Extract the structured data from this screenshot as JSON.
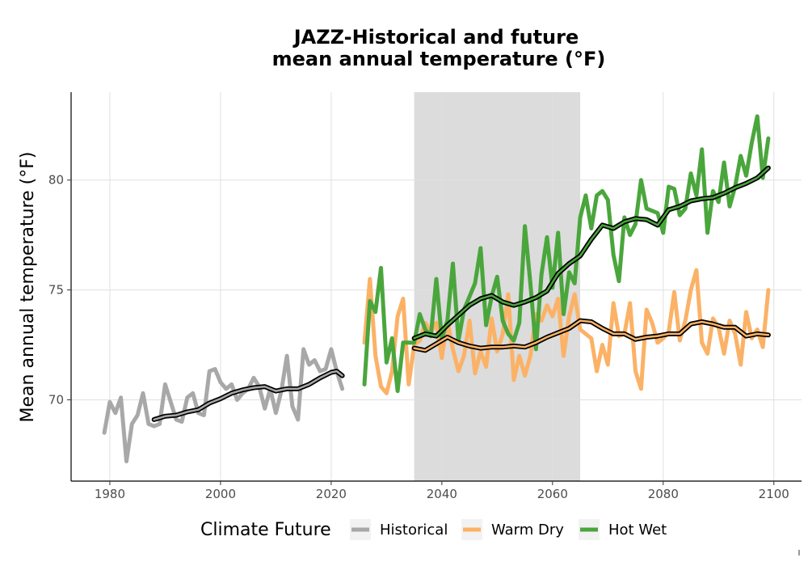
{
  "chart_data": {
    "type": "line",
    "title_lines": [
      "JAZZ-Historical and future",
      "mean annual temperature (°F)"
    ],
    "ylabel": "Mean annual temperature (°F)",
    "xlabel": "",
    "xlim": [
      1973,
      2105
    ],
    "ylim": [
      66.3,
      84.0
    ],
    "x_ticks": [
      1980,
      2000,
      2020,
      2040,
      2060,
      2080,
      2100
    ],
    "y_ticks": [
      70,
      75,
      80
    ],
    "grid": true,
    "shaded_period": [
      2035,
      2065
    ],
    "shaded_color": "#dcdcdc",
    "legend": {
      "title": "Climate Future",
      "position": "bottom",
      "items": [
        {
          "label": "Historical",
          "color": "#a8a8a8"
        },
        {
          "label": "Warm Dry",
          "color": "#fbb266"
        },
        {
          "label": "Hot Wet",
          "color": "#4aa63c"
        }
      ]
    },
    "series": [
      {
        "name": "Historical",
        "color": "#a8a8a8",
        "x": [
          1979,
          1980,
          1981,
          1982,
          1983,
          1984,
          1985,
          1986,
          1987,
          1988,
          1989,
          1990,
          1991,
          1992,
          1993,
          1994,
          1995,
          1996,
          1997,
          1998,
          1999,
          2000,
          2001,
          2002,
          2003,
          2004,
          2005,
          2006,
          2007,
          2008,
          2009,
          2010,
          2011,
          2012,
          2013,
          2014,
          2015,
          2016,
          2017,
          2018,
          2019,
          2020,
          2021,
          2022
        ],
        "y": [
          68.5,
          69.9,
          69.4,
          70.1,
          67.2,
          68.9,
          69.3,
          70.3,
          68.9,
          68.8,
          68.9,
          70.7,
          69.9,
          69.1,
          69.0,
          70.1,
          70.3,
          69.4,
          69.3,
          71.3,
          71.4,
          70.8,
          70.5,
          70.7,
          70.0,
          70.3,
          70.5,
          71.0,
          70.6,
          69.6,
          70.5,
          69.4,
          70.4,
          72.0,
          69.7,
          69.1,
          72.3,
          71.6,
          71.8,
          71.3,
          71.4,
          72.3,
          71.3,
          70.5
        ]
      },
      {
        "name": "Historical mean",
        "color": "#000000",
        "x": [
          1988,
          1990,
          1992,
          1994,
          1996,
          1998,
          2000,
          2002,
          2004,
          2006,
          2008,
          2010,
          2012,
          2014,
          2016,
          2018,
          2020,
          2021,
          2022
        ],
        "y": [
          69.1,
          69.25,
          69.3,
          69.45,
          69.55,
          69.85,
          70.05,
          70.3,
          70.45,
          70.55,
          70.6,
          70.4,
          70.5,
          70.5,
          70.7,
          71.0,
          71.25,
          71.3,
          71.1
        ]
      },
      {
        "name": "Warm Dry",
        "color": "#fbb266",
        "x": [
          2026,
          2027,
          2028,
          2029,
          2030,
          2031,
          2032,
          2033,
          2034,
          2035,
          2036,
          2037,
          2038,
          2039,
          2040,
          2041,
          2042,
          2043,
          2044,
          2045,
          2046,
          2047,
          2048,
          2049,
          2050,
          2051,
          2052,
          2053,
          2054,
          2055,
          2056,
          2057,
          2058,
          2059,
          2060,
          2061,
          2062,
          2063,
          2064,
          2065,
          2066,
          2067,
          2068,
          2069,
          2070,
          2071,
          2072,
          2073,
          2074,
          2075,
          2076,
          2077,
          2078,
          2079,
          2080,
          2081,
          2082,
          2083,
          2084,
          2085,
          2086,
          2087,
          2088,
          2089,
          2090,
          2091,
          2092,
          2093,
          2094,
          2095,
          2096,
          2097,
          2098,
          2099
        ],
        "y": [
          72.6,
          75.5,
          72.0,
          70.6,
          70.3,
          71.3,
          73.8,
          74.6,
          70.7,
          72.5,
          72.7,
          73.5,
          73.1,
          73.5,
          71.9,
          73.6,
          72.3,
          71.3,
          72.0,
          73.6,
          71.2,
          72.2,
          71.5,
          73.7,
          72.2,
          73.0,
          74.8,
          70.9,
          72.0,
          71.1,
          72.0,
          73.9,
          73.6,
          74.3,
          73.8,
          74.6,
          72.0,
          73.8,
          74.8,
          73.2,
          73.0,
          72.8,
          71.3,
          72.5,
          71.6,
          74.4,
          72.9,
          73.0,
          74.4,
          71.3,
          70.5,
          74.1,
          73.5,
          72.6,
          72.8,
          73.1,
          74.9,
          72.7,
          73.6,
          75.0,
          75.9,
          72.6,
          72.1,
          73.7,
          73.3,
          72.1,
          73.6,
          73.0,
          71.6,
          74.0,
          72.8,
          73.2,
          72.4,
          75.0
        ]
      },
      {
        "name": "Warm Dry mean",
        "color": "#000000",
        "x": [
          2035,
          2037,
          2039,
          2041,
          2043,
          2045,
          2047,
          2049,
          2051,
          2053,
          2055,
          2057,
          2059,
          2061,
          2063,
          2065,
          2067,
          2069,
          2071,
          2073,
          2075,
          2077,
          2079,
          2081,
          2083,
          2085,
          2087,
          2089,
          2091,
          2093,
          2095,
          2097,
          2099
        ],
        "y": [
          72.35,
          72.25,
          72.55,
          72.85,
          72.6,
          72.45,
          72.35,
          72.4,
          72.4,
          72.45,
          72.4,
          72.6,
          72.85,
          73.05,
          73.25,
          73.6,
          73.55,
          73.25,
          73.0,
          73.0,
          72.75,
          72.85,
          72.9,
          73.0,
          73.0,
          73.45,
          73.55,
          73.45,
          73.3,
          73.3,
          72.9,
          73.0,
          72.95
        ]
      },
      {
        "name": "Hot Wet",
        "color": "#4aa63c",
        "x": [
          2026,
          2027,
          2028,
          2029,
          2030,
          2031,
          2032,
          2033,
          2034,
          2035,
          2036,
          2037,
          2038,
          2039,
          2040,
          2041,
          2042,
          2043,
          2044,
          2045,
          2046,
          2047,
          2048,
          2049,
          2050,
          2051,
          2052,
          2053,
          2054,
          2055,
          2056,
          2057,
          2058,
          2059,
          2060,
          2061,
          2062,
          2063,
          2064,
          2065,
          2066,
          2067,
          2068,
          2069,
          2070,
          2071,
          2072,
          2073,
          2074,
          2075,
          2076,
          2077,
          2078,
          2079,
          2080,
          2081,
          2082,
          2083,
          2084,
          2085,
          2086,
          2087,
          2088,
          2089,
          2090,
          2091,
          2092,
          2093,
          2094,
          2095,
          2096,
          2097,
          2098,
          2099
        ],
        "y": [
          70.7,
          74.5,
          74.0,
          76.0,
          71.7,
          72.8,
          70.4,
          72.6,
          72.6,
          72.6,
          73.9,
          73.2,
          72.9,
          75.5,
          72.8,
          73.6,
          76.2,
          72.7,
          74.1,
          74.7,
          75.3,
          76.9,
          73.4,
          74.7,
          75.6,
          73.6,
          73.0,
          72.7,
          73.5,
          77.9,
          75.3,
          72.3,
          75.7,
          77.4,
          75.1,
          77.6,
          73.9,
          75.8,
          75.3,
          78.3,
          79.3,
          77.8,
          79.3,
          79.5,
          79.1,
          76.6,
          75.4,
          78.3,
          77.5,
          78.0,
          80.0,
          78.7,
          78.6,
          78.5,
          77.6,
          79.7,
          79.6,
          78.4,
          78.7,
          80.3,
          79.3,
          81.4,
          77.6,
          79.5,
          79.0,
          80.8,
          78.8,
          79.7,
          81.1,
          80.2,
          81.7,
          82.9,
          80.1,
          81.9
        ]
      },
      {
        "name": "Hot Wet mean",
        "color": "#000000",
        "x": [
          2035,
          2037,
          2039,
          2041,
          2043,
          2045,
          2047,
          2049,
          2051,
          2053,
          2055,
          2057,
          2059,
          2061,
          2063,
          2065,
          2067,
          2069,
          2071,
          2073,
          2075,
          2077,
          2079,
          2081,
          2083,
          2085,
          2087,
          2089,
          2091,
          2093,
          2095,
          2097,
          2099
        ],
        "y": [
          72.8,
          73.0,
          72.9,
          73.4,
          73.85,
          74.3,
          74.6,
          74.75,
          74.45,
          74.3,
          74.45,
          74.65,
          74.95,
          75.75,
          76.2,
          76.55,
          77.3,
          77.95,
          77.8,
          78.1,
          78.25,
          78.2,
          77.95,
          78.65,
          78.8,
          79.05,
          79.15,
          79.2,
          79.4,
          79.65,
          79.85,
          80.1,
          80.55
        ]
      }
    ]
  }
}
